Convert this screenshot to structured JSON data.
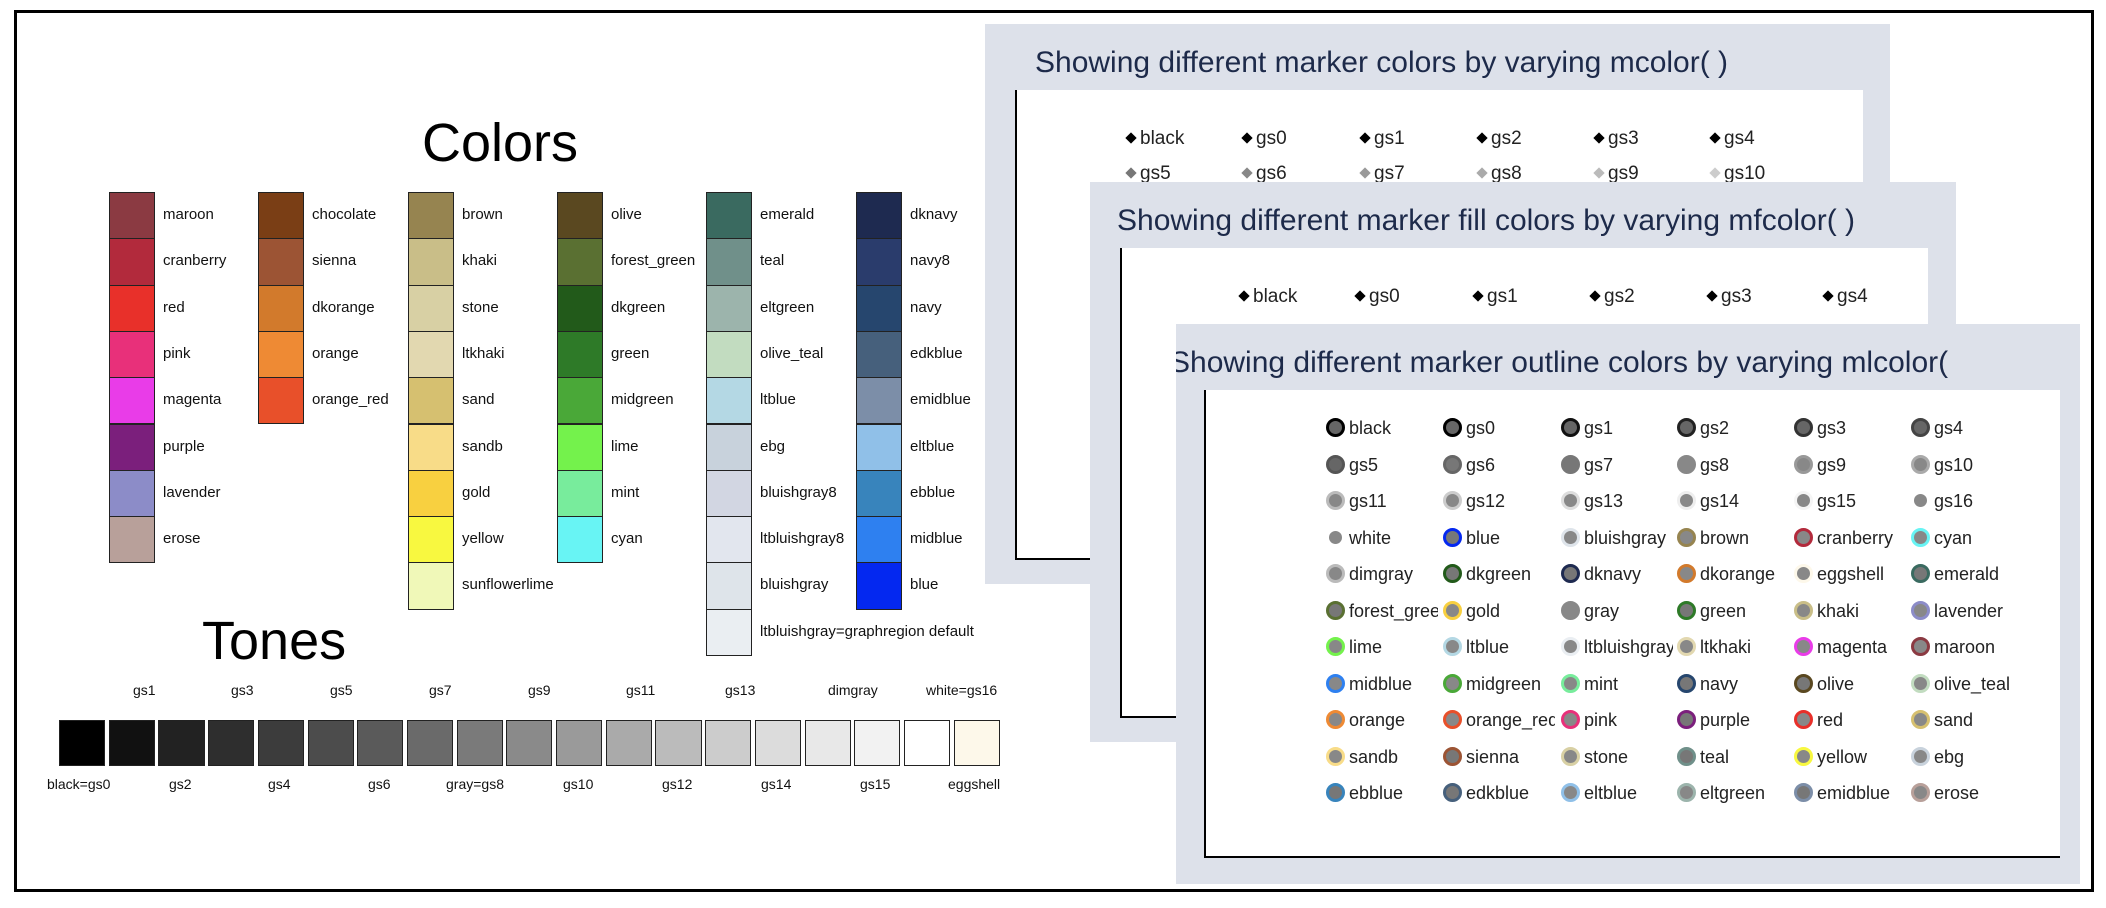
{
  "colors_title": "Colors",
  "tones_title": "Tones",
  "color_columns": [
    [
      {
        "name": "maroon",
        "hex": "#8b3a42"
      },
      {
        "name": "cranberry",
        "hex": "#b22a3c"
      },
      {
        "name": "red",
        "hex": "#e8302a"
      },
      {
        "name": "pink",
        "hex": "#e8307a"
      },
      {
        "name": "magenta",
        "hex": "#e93ce8"
      },
      {
        "name": "purple",
        "hex": "#7b1f7c"
      },
      {
        "name": "lavender",
        "hex": "#8c8cc8"
      },
      {
        "name": "erose",
        "hex": "#b8a09a"
      }
    ],
    [
      {
        "name": "chocolate",
        "hex": "#7a3e15"
      },
      {
        "name": "sienna",
        "hex": "#9c5434"
      },
      {
        "name": "dkorange",
        "hex": "#d27a2c"
      },
      {
        "name": "orange",
        "hex": "#ee8a34"
      },
      {
        "name": "orange_red",
        "hex": "#e8502a"
      }
    ],
    [
      {
        "name": "brown",
        "hex": "#968450"
      },
      {
        "name": "khaki",
        "hex": "#c9be88"
      },
      {
        "name": "stone",
        "hex": "#d8d0a4"
      },
      {
        "name": "ltkhaki",
        "hex": "#e2d8b0"
      },
      {
        "name": "sand",
        "hex": "#d6c070"
      },
      {
        "name": "sandb",
        "hex": "#f8dc88"
      },
      {
        "name": "gold",
        "hex": "#f8d040"
      },
      {
        "name": "yellow",
        "hex": "#f8f840"
      },
      {
        "name": "sunflowerlime",
        "hex": "#f0f8b8"
      }
    ],
    [
      {
        "name": "olive",
        "hex": "#5a4820"
      },
      {
        "name": "forest_green",
        "hex": "#5a7032"
      },
      {
        "name": "dkgreen",
        "hex": "#225a1a"
      },
      {
        "name": "green",
        "hex": "#2e7a28"
      },
      {
        "name": "midgreen",
        "hex": "#4aa838"
      },
      {
        "name": "lime",
        "hex": "#74f24c"
      },
      {
        "name": "mint",
        "hex": "#78ec9c"
      },
      {
        "name": "cyan",
        "hex": "#68f4f4"
      }
    ],
    [
      {
        "name": "emerald",
        "hex": "#3a6a60"
      },
      {
        "name": "teal",
        "hex": "#70908a"
      },
      {
        "name": "eltgreen",
        "hex": "#9cb4ac"
      },
      {
        "name": "olive_teal",
        "hex": "#c2dcc0"
      },
      {
        "name": "ltblue",
        "hex": "#b4d8e4"
      },
      {
        "name": "ebg",
        "hex": "#c8d2dc"
      },
      {
        "name": "bluishgray8",
        "hex": "#d2d6e2"
      },
      {
        "name": "ltbluishgray8",
        "hex": "#e2e6ee"
      },
      {
        "name": "bluishgray",
        "hex": "#dee4ea"
      },
      {
        "name": "ltbluishgray=graphregion default",
        "hex": "#eaeef2"
      }
    ],
    [
      {
        "name": "dknavy",
        "hex": "#1e2a50"
      },
      {
        "name": "navy8",
        "hex": "#2a3c6c"
      },
      {
        "name": "navy",
        "hex": "#26466e"
      },
      {
        "name": "edkblue",
        "hex": "#46607c"
      },
      {
        "name": "emidblue",
        "hex": "#7c8ea8"
      },
      {
        "name": "eltblue",
        "hex": "#90c0e8"
      },
      {
        "name": "ebblue",
        "hex": "#3884bc"
      },
      {
        "name": "midblue",
        "hex": "#2e80f0"
      },
      {
        "name": "blue",
        "hex": "#0428f0"
      }
    ]
  ],
  "tones": [
    "#000000",
    "#111111",
    "#222222",
    "#2e2e2e",
    "#3c3c3c",
    "#4c4c4c",
    "#5a5a5a",
    "#6a6a6a",
    "#7a7a7a",
    "#8a8a8a",
    "#9a9a9a",
    "#aaaaaa",
    "#bbbbbb",
    "#cccccc",
    "#dcdcdc",
    "#e8e8e8",
    "#f2f2f2",
    "#ffffff",
    "#fdf8ea"
  ],
  "tone_labels_top": [
    "gs1",
    "gs3",
    "gs5",
    "gs7",
    "gs9",
    "gs11",
    "gs13",
    "dimgray",
    "white=gs16"
  ],
  "tone_labels_bottom": [
    "black=gs0",
    "gs2",
    "gs4",
    "gs6",
    "gray=gs8",
    "gs10",
    "gs12",
    "gs14",
    "gs15",
    "eggshell"
  ],
  "panel1": {
    "title": "Showing different marker colors by varying mcolor(  )",
    "row1": [
      "black",
      "gs0",
      "gs1",
      "gs2",
      "gs3",
      "gs4"
    ],
    "row2": [
      "gs5",
      "gs6",
      "gs7",
      "gs8",
      "gs9",
      "gs10"
    ],
    "row2_colors": [
      "#777",
      "#888",
      "#999",
      "#aaa",
      "#bbb",
      "#ccc"
    ]
  },
  "panel2": {
    "title": "Showing different marker fill colors by varying mfcolor(  )",
    "row1": [
      "black",
      "gs0",
      "gs1",
      "gs2",
      "gs3",
      "gs4"
    ]
  },
  "panel3": {
    "title": "Showing different marker outline colors by varying mlcolor(",
    "items": [
      {
        "name": "black",
        "fill": "#666",
        "line": "#000"
      },
      {
        "name": "gs0",
        "fill": "#666",
        "line": "#000"
      },
      {
        "name": "gs1",
        "fill": "#666",
        "line": "#111"
      },
      {
        "name": "gs2",
        "fill": "#666",
        "line": "#222"
      },
      {
        "name": "gs3",
        "fill": "#666",
        "line": "#333"
      },
      {
        "name": "gs4",
        "fill": "#666",
        "line": "#444"
      },
      {
        "name": "gs5",
        "fill": "#666",
        "line": "#555"
      },
      {
        "name": "gs6",
        "fill": "#777",
        "line": "#666"
      },
      {
        "name": "gs7",
        "fill": "#777",
        "line": "#777"
      },
      {
        "name": "gs8",
        "fill": "#888",
        "line": "#888"
      },
      {
        "name": "gs9",
        "fill": "#888",
        "line": "#999"
      },
      {
        "name": "gs10",
        "fill": "#888",
        "line": "#aaa"
      },
      {
        "name": "gs11",
        "fill": "#888",
        "line": "#bbb"
      },
      {
        "name": "gs12",
        "fill": "#888",
        "line": "#ccc"
      },
      {
        "name": "gs13",
        "fill": "#888",
        "line": "#ddd"
      },
      {
        "name": "gs14",
        "fill": "#888",
        "line": "#eee"
      },
      {
        "name": "gs15",
        "fill": "#888",
        "line": "#f5f5f5"
      },
      {
        "name": "gs16",
        "fill": "#888",
        "line": "#fff"
      },
      {
        "name": "white",
        "fill": "#888",
        "line": "#fff"
      },
      {
        "name": "blue",
        "fill": "#777",
        "line": "#0428f0"
      },
      {
        "name": "bluishgray",
        "fill": "#888",
        "line": "#dee4ea"
      },
      {
        "name": "brown",
        "fill": "#888",
        "line": "#968450"
      },
      {
        "name": "cranberry",
        "fill": "#888",
        "line": "#b22a3c"
      },
      {
        "name": "cyan",
        "fill": "#888",
        "line": "#68f4f4"
      },
      {
        "name": "dimgray",
        "fill": "#888",
        "line": "#bbb"
      },
      {
        "name": "dkgreen",
        "fill": "#777",
        "line": "#225a1a"
      },
      {
        "name": "dknavy",
        "fill": "#777",
        "line": "#1e2a50"
      },
      {
        "name": "dkorange",
        "fill": "#888",
        "line": "#d27a2c"
      },
      {
        "name": "eggshell",
        "fill": "#888",
        "line": "#fdf8ea"
      },
      {
        "name": "emerald",
        "fill": "#777",
        "line": "#3a6a60"
      },
      {
        "name": "forest_green",
        "fill": "#777",
        "line": "#5a7032"
      },
      {
        "name": "gold",
        "fill": "#888",
        "line": "#f8d040"
      },
      {
        "name": "gray",
        "fill": "#888",
        "line": "#888"
      },
      {
        "name": "green",
        "fill": "#777",
        "line": "#2e7a28"
      },
      {
        "name": "khaki",
        "fill": "#888",
        "line": "#c9be88"
      },
      {
        "name": "lavender",
        "fill": "#888",
        "line": "#8c8cc8"
      },
      {
        "name": "lime",
        "fill": "#888",
        "line": "#74f24c"
      },
      {
        "name": "ltblue",
        "fill": "#888",
        "line": "#b4d8e4"
      },
      {
        "name": "ltbluishgray",
        "fill": "#888",
        "line": "#eaeef2"
      },
      {
        "name": "ltkhaki",
        "fill": "#888",
        "line": "#e2d8b0"
      },
      {
        "name": "magenta",
        "fill": "#888",
        "line": "#e93ce8"
      },
      {
        "name": "maroon",
        "fill": "#888",
        "line": "#8b3a42"
      },
      {
        "name": "midblue",
        "fill": "#888",
        "line": "#2e80f0"
      },
      {
        "name": "midgreen",
        "fill": "#888",
        "line": "#4aa838"
      },
      {
        "name": "mint",
        "fill": "#888",
        "line": "#78ec9c"
      },
      {
        "name": "navy",
        "fill": "#777",
        "line": "#26466e"
      },
      {
        "name": "olive",
        "fill": "#777",
        "line": "#5a4820"
      },
      {
        "name": "olive_teal",
        "fill": "#888",
        "line": "#c2dcc0"
      },
      {
        "name": "orange",
        "fill": "#888",
        "line": "#ee8a34"
      },
      {
        "name": "orange_red",
        "fill": "#888",
        "line": "#e8502a"
      },
      {
        "name": "pink",
        "fill": "#888",
        "line": "#e8307a"
      },
      {
        "name": "purple",
        "fill": "#777",
        "line": "#7b1f7c"
      },
      {
        "name": "red",
        "fill": "#888",
        "line": "#e8302a"
      },
      {
        "name": "sand",
        "fill": "#888",
        "line": "#d6c070"
      },
      {
        "name": "sandb",
        "fill": "#888",
        "line": "#f8dc88"
      },
      {
        "name": "sienna",
        "fill": "#777",
        "line": "#9c5434"
      },
      {
        "name": "stone",
        "fill": "#888",
        "line": "#d8d0a4"
      },
      {
        "name": "teal",
        "fill": "#777",
        "line": "#70908a"
      },
      {
        "name": "yellow",
        "fill": "#888",
        "line": "#f8f840"
      },
      {
        "name": "ebg",
        "fill": "#888",
        "line": "#c8d2dc"
      },
      {
        "name": "ebblue",
        "fill": "#777",
        "line": "#3884bc"
      },
      {
        "name": "edkblue",
        "fill": "#777",
        "line": "#46607c"
      },
      {
        "name": "eltblue",
        "fill": "#888",
        "line": "#90c0e8"
      },
      {
        "name": "eltgreen",
        "fill": "#888",
        "line": "#9cb4ac"
      },
      {
        "name": "emidblue",
        "fill": "#777",
        "line": "#7c8ea8"
      },
      {
        "name": "erose",
        "fill": "#888",
        "line": "#b8a09a"
      }
    ]
  }
}
